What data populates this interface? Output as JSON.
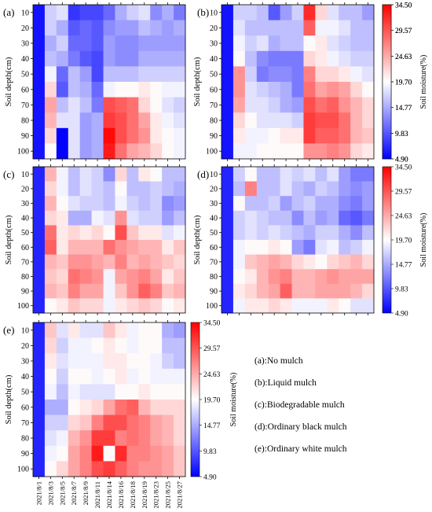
{
  "chart_data": {
    "type": "heatmap",
    "scale": {
      "min": 4.9,
      "max": 34.5,
      "ticks": [
        "34.50",
        "29.57",
        "24.63",
        "19.70",
        "14.77",
        "9.83",
        "4.90"
      ],
      "colormap": [
        "#0000ff",
        "#ffffff",
        "#ff0000"
      ]
    },
    "ylabel": "Soil depth(cm)",
    "colorbar_label": "Soil moisture(%)",
    "depths": [
      "10",
      "20",
      "30",
      "40",
      "50",
      "60",
      "70",
      "80",
      "90",
      "100"
    ],
    "dates": [
      "2021/8/1",
      "2021/8/3",
      "2021/8/5",
      "2021/8/7",
      "2021/8/9",
      "2021/8/11",
      "2021/8/14",
      "2021/8/16",
      "2021/8/18",
      "2021/8/19",
      "2021/8/23",
      "2021/8/25",
      "2021/8/27"
    ],
    "panels": [
      {
        "label": "(a)",
        "values": [
          [
            6,
            17,
            18,
            8,
            9,
            9,
            11,
            15,
            17,
            18,
            13,
            15,
            12
          ],
          [
            6,
            17,
            15,
            10,
            11,
            10,
            13,
            14,
            14,
            16,
            15,
            14,
            15
          ],
          [
            6,
            15,
            17,
            11,
            11,
            10,
            14,
            13,
            13,
            14,
            14,
            14,
            14
          ],
          [
            6,
            16,
            15,
            12,
            10,
            9,
            14,
            13,
            13,
            15,
            15,
            15,
            15
          ],
          [
            6,
            19,
            11,
            16,
            14,
            9,
            16,
            16,
            16,
            17,
            17,
            17,
            17
          ],
          [
            6,
            22,
            10,
            16,
            15,
            11,
            19,
            20,
            20,
            21,
            20,
            19,
            19
          ],
          [
            6,
            25,
            16,
            18,
            16,
            12,
            30,
            29,
            28,
            22,
            20,
            18,
            17
          ],
          [
            6,
            24,
            18,
            18,
            14,
            15,
            31,
            30,
            28,
            25,
            21,
            19,
            18
          ],
          [
            6,
            22,
            5,
            18,
            14,
            15,
            34,
            30,
            28,
            26,
            21,
            20,
            19
          ],
          [
            6,
            20,
            5,
            18,
            14,
            15,
            33,
            28,
            25,
            24,
            22,
            20,
            19
          ]
        ]
      },
      {
        "label": "(b)",
        "values": [
          [
            6,
            17,
            17,
            16,
            10,
            14,
            17,
            32,
            22,
            18,
            16,
            16,
            14
          ],
          [
            6,
            18,
            16,
            16,
            16,
            16,
            16,
            29,
            19,
            19,
            18,
            16,
            16
          ],
          [
            6,
            19,
            17,
            18,
            15,
            16,
            16,
            20,
            21,
            18,
            17,
            16,
            16
          ],
          [
            6,
            20,
            16,
            13,
            12,
            12,
            12,
            22,
            21,
            19,
            18,
            17,
            17
          ],
          [
            6,
            26,
            17,
            12,
            13,
            13,
            12,
            27,
            22,
            22,
            21,
            19,
            18
          ],
          [
            6,
            26,
            18,
            17,
            16,
            15,
            12,
            28,
            25,
            26,
            25,
            22,
            20
          ],
          [
            6,
            25,
            18,
            18,
            17,
            15,
            14,
            30,
            28,
            29,
            26,
            24,
            22
          ],
          [
            6,
            22,
            20,
            18,
            18,
            18,
            17,
            31,
            30,
            30,
            28,
            24,
            22
          ],
          [
            6,
            21,
            19,
            19,
            20,
            21,
            21,
            31,
            29,
            29,
            28,
            24,
            23
          ],
          [
            6,
            19,
            19,
            20,
            20,
            20,
            20,
            26,
            26,
            27,
            26,
            22,
            21
          ]
        ]
      },
      {
        "label": "(c)",
        "values": [
          [
            7,
            24,
            19,
            16,
            18,
            17,
            13,
            22,
            16,
            21,
            20,
            16,
            16
          ],
          [
            7,
            22,
            19,
            16,
            18,
            17,
            16,
            20,
            16,
            16,
            17,
            16,
            15
          ],
          [
            7,
            24,
            20,
            18,
            17,
            17,
            16,
            19,
            17,
            16,
            17,
            13,
            14
          ],
          [
            7,
            22,
            21,
            15,
            15,
            19,
            18,
            26,
            18,
            17,
            17,
            14,
            16
          ],
          [
            7,
            28,
            21,
            22,
            21,
            22,
            20,
            30,
            23,
            21,
            21,
            18,
            19
          ],
          [
            7,
            29,
            21,
            24,
            24,
            24,
            28,
            26,
            25,
            24,
            24,
            21,
            23
          ],
          [
            7,
            24,
            23,
            26,
            26,
            25,
            24,
            27,
            24,
            25,
            24,
            23,
            22
          ],
          [
            7,
            23,
            22,
            28,
            27,
            26,
            19,
            25,
            26,
            27,
            25,
            21,
            23
          ],
          [
            7,
            24,
            23,
            27,
            25,
            25,
            19,
            23,
            26,
            29,
            27,
            23,
            24
          ],
          [
            7,
            20,
            21,
            23,
            22,
            22,
            19,
            21,
            22,
            23,
            22,
            20,
            21
          ]
        ]
      },
      {
        "label": "(d)",
        "values": [
          [
            7,
            17,
            20,
            16,
            16,
            18,
            17,
            18,
            16,
            18,
            14,
            12,
            12
          ],
          [
            7,
            16,
            27,
            16,
            16,
            18,
            16,
            15,
            17,
            16,
            14,
            13,
            14
          ],
          [
            7,
            20,
            16,
            16,
            17,
            14,
            16,
            17,
            15,
            15,
            13,
            12,
            14
          ],
          [
            7,
            17,
            18,
            17,
            16,
            16,
            13,
            16,
            14,
            15,
            11,
            10,
            12
          ],
          [
            7,
            17,
            18,
            17,
            18,
            17,
            16,
            15,
            17,
            17,
            15,
            13,
            16
          ],
          [
            7,
            19,
            20,
            20,
            21,
            20,
            14,
            12,
            18,
            19,
            16,
            17,
            19
          ],
          [
            7,
            19,
            23,
            24,
            25,
            24,
            22,
            21,
            20,
            22,
            23,
            24,
            22
          ],
          [
            7,
            20,
            21,
            24,
            26,
            27,
            24,
            24,
            25,
            26,
            25,
            25,
            25
          ],
          [
            7,
            21,
            22,
            24,
            25,
            29,
            24,
            24,
            25,
            25,
            25,
            24,
            22
          ],
          [
            7,
            19,
            21,
            21,
            22,
            21,
            19,
            19,
            19,
            21,
            20,
            18,
            18
          ]
        ]
      },
      {
        "label": "(e)",
        "values": [
          [
            7,
            23,
            18,
            21,
            18,
            18,
            23,
            21,
            19,
            20,
            20,
            15,
            14
          ],
          [
            7,
            22,
            17,
            19,
            19,
            20,
            21,
            20,
            19,
            20,
            20,
            16,
            16
          ],
          [
            7,
            21,
            18,
            19,
            19,
            19,
            21,
            21,
            20,
            20,
            19,
            17,
            16
          ],
          [
            7,
            20,
            17,
            20,
            20,
            19,
            20,
            21,
            19,
            20,
            19,
            19,
            19
          ],
          [
            7,
            19,
            16,
            19,
            18,
            18,
            18,
            20,
            20,
            21,
            20,
            20,
            20
          ],
          [
            7,
            15,
            15,
            20,
            21,
            22,
            25,
            28,
            29,
            24,
            22,
            22,
            22
          ],
          [
            7,
            17,
            17,
            22,
            23,
            27,
            30,
            30,
            28,
            27,
            25,
            24,
            22
          ],
          [
            7,
            18,
            19,
            24,
            26,
            31,
            31,
            27,
            28,
            27,
            25,
            24,
            22
          ],
          [
            7,
            19,
            20,
            25,
            27,
            33,
            20,
            32,
            27,
            27,
            26,
            25,
            23
          ],
          [
            7,
            20,
            22,
            25,
            27,
            30,
            31,
            29,
            27,
            26,
            26,
            25,
            23
          ]
        ]
      }
    ]
  },
  "legend_entries": [
    "(a):No mulch",
    "(b):Liquid mulch",
    "(c):Biodegradable mulch",
    "(d):Ordinary black mulch",
    "(e):Ordinary white mulch"
  ]
}
